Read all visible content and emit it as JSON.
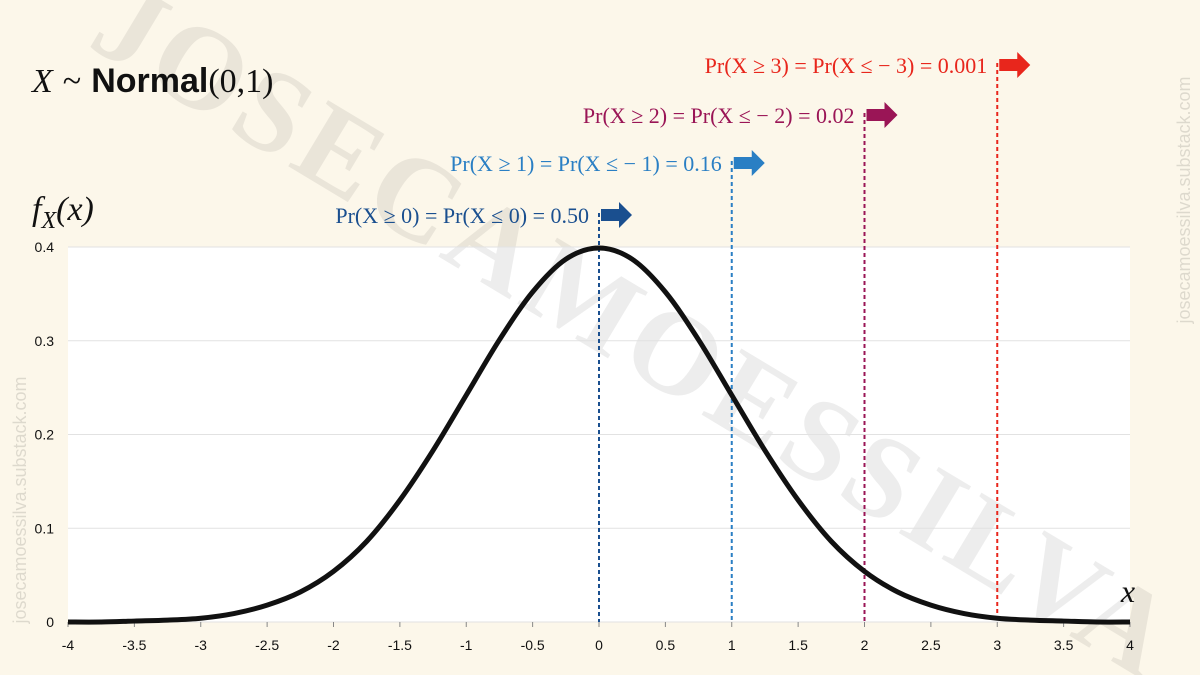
{
  "chart_data": {
    "type": "line",
    "title": [
      "X",
      "~",
      "Normal",
      "(0,1)"
    ],
    "y_label": [
      "f",
      "X",
      "(x)"
    ],
    "x_label": "x",
    "watermark": "JOSECAMOESSILVA",
    "side_text": "josecamoessilva.substack.com",
    "x": [
      -4,
      -3.75,
      -3.5,
      -3.25,
      -3,
      -2.75,
      -2.5,
      -2.25,
      -2,
      -1.75,
      -1.5,
      -1.25,
      -1,
      -0.75,
      -0.5,
      -0.25,
      0,
      0.25,
      0.5,
      0.75,
      1,
      1.25,
      1.5,
      1.75,
      2,
      2.25,
      2.5,
      2.75,
      3,
      3.25,
      3.5,
      3.75,
      4
    ],
    "series": [
      {
        "color": "#111111",
        "values": [
          0.0,
          0.0,
          0.001,
          0.002,
          0.004,
          0.009,
          0.018,
          0.032,
          0.054,
          0.086,
          0.13,
          0.183,
          0.242,
          0.301,
          0.352,
          0.387,
          0.399,
          0.387,
          0.352,
          0.301,
          0.242,
          0.183,
          0.13,
          0.086,
          0.054,
          0.032,
          0.018,
          0.009,
          0.004,
          0.002,
          0.001,
          0.0,
          0.0
        ]
      }
    ],
    "xlim": [
      -4,
      4
    ],
    "ylim": [
      0,
      0.4
    ],
    "xticks": [
      -4,
      -3.5,
      -3,
      -2.5,
      -2,
      -1.5,
      -1,
      -0.5,
      0,
      0.5,
      1,
      1.5,
      2,
      2.5,
      3,
      3.5,
      4
    ],
    "yticks": [
      0,
      0.1,
      0.2,
      0.3,
      0.4
    ],
    "grid": true,
    "annotations": [
      {
        "text": "Pr(X ≥ 0) = Pr(X ≤ 0) = 0.50",
        "x": 0,
        "color": "#1a4f8f"
      },
      {
        "text": "Pr(X ≥ 1) = Pr(X ≤ − 1) = 0.16",
        "x": 1,
        "color": "#2a7fc4"
      },
      {
        "text": "Pr(X ≥ 2) = Pr(X ≤ − 2) = 0.02",
        "x": 2,
        "color": "#9a1556"
      },
      {
        "text": "Pr(X ≥ 3) = Pr(X ≤ − 3) = 0.001",
        "x": 3,
        "color": "#e8261c"
      }
    ]
  }
}
